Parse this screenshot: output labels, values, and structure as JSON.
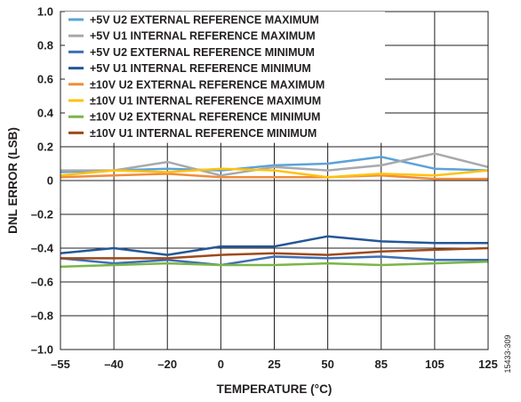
{
  "chart_data": {
    "type": "line",
    "categories": [
      "–55",
      "–40",
      "–20",
      "0",
      "25",
      "50",
      "85",
      "105",
      "125"
    ],
    "xlabel": "TEMPERATURE (°C)",
    "ylabel": "DNL ERROR (LSB)",
    "ylim": [
      -1.0,
      1.0
    ],
    "yticks": [
      1.0,
      0.8,
      0.6,
      0.4,
      0.2,
      0,
      -0.2,
      -0.4,
      -0.6,
      -0.8,
      -1.0
    ],
    "ytick_labels": [
      "1.0",
      "0.8",
      "0.6",
      "0.4",
      "0.2",
      "0",
      "–0.2",
      "–0.4",
      "–0.6",
      "–0.8",
      "–1.0"
    ],
    "grid": true,
    "legend_position": "top-left",
    "figure_id": "15433-309",
    "series": [
      {
        "name": "+5V U2 EXTERNAL REFERENCE MAXIMUM",
        "color": "#5ba3d9",
        "values": [
          0.05,
          0.06,
          0.07,
          0.06,
          0.09,
          0.1,
          0.14,
          0.07,
          0.06
        ]
      },
      {
        "name": "+5V U1 INTERNAL REFERENCE MAXIMUM",
        "color": "#a7a9ac",
        "values": [
          0.06,
          0.06,
          0.11,
          0.03,
          0.08,
          0.06,
          0.09,
          0.16,
          0.08
        ]
      },
      {
        "name": "+5V U2 EXTERNAL REFERENCE MINIMUM",
        "color": "#3f6fb5",
        "values": [
          -0.46,
          -0.49,
          -0.47,
          -0.5,
          -0.45,
          -0.46,
          -0.45,
          -0.47,
          -0.47
        ]
      },
      {
        "name": "+5V U1 INTERNAL REFERENCE MINIMUM",
        "color": "#245796",
        "values": [
          -0.43,
          -0.4,
          -0.44,
          -0.39,
          -0.39,
          -0.33,
          -0.36,
          -0.37,
          -0.37
        ]
      },
      {
        "name": "±10V U2 EXTERNAL REFERENCE MAXIMUM",
        "color": "#f08d3c",
        "values": [
          0.02,
          0.03,
          0.04,
          0.02,
          0.02,
          0.02,
          0.03,
          0.01,
          0.01
        ]
      },
      {
        "name": "±10V U1 INTERNAL REFERENCE MAXIMUM",
        "color": "#ffc20e",
        "values": [
          0.03,
          0.06,
          0.05,
          0.07,
          0.06,
          0.02,
          0.04,
          0.03,
          0.06
        ]
      },
      {
        "name": "±10V U2 EXTERNAL REFERENCE MINIMUM",
        "color": "#7ab648",
        "values": [
          -0.51,
          -0.5,
          -0.49,
          -0.5,
          -0.5,
          -0.49,
          -0.5,
          -0.49,
          -0.48
        ]
      },
      {
        "name": "±10V U1 INTERNAL REFERENCE MINIMUM",
        "color": "#9e4a1b",
        "values": [
          -0.46,
          -0.46,
          -0.46,
          -0.44,
          -0.43,
          -0.44,
          -0.42,
          -0.41,
          -0.4
        ]
      }
    ]
  }
}
